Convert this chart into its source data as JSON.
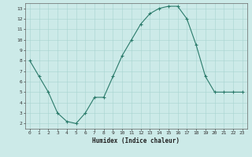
{
  "x": [
    0,
    1,
    2,
    3,
    4,
    5,
    6,
    7,
    8,
    9,
    10,
    11,
    12,
    13,
    14,
    15,
    16,
    17,
    18,
    19,
    20,
    21,
    22,
    23
  ],
  "y": [
    8.0,
    6.5,
    5.0,
    3.0,
    2.2,
    2.0,
    3.0,
    4.5,
    4.5,
    6.5,
    8.5,
    10.0,
    11.5,
    12.5,
    13.0,
    13.2,
    13.2,
    12.0,
    9.5,
    6.5,
    5.0,
    5.0,
    5.0,
    5.0
  ],
  "xlabel": "Humidex (Indice chaleur)",
  "xlim": [
    -0.5,
    23.5
  ],
  "ylim": [
    1.5,
    13.5
  ],
  "yticks": [
    2,
    3,
    4,
    5,
    6,
    7,
    8,
    9,
    10,
    11,
    12,
    13
  ],
  "xticks": [
    0,
    1,
    2,
    3,
    4,
    5,
    6,
    7,
    8,
    9,
    10,
    11,
    12,
    13,
    14,
    15,
    16,
    17,
    18,
    19,
    20,
    21,
    22,
    23
  ],
  "line_color": "#2a7a6a",
  "bg_color": "#cceae8",
  "grid_color": "#a8d4d0",
  "tick_fontsize": 4.5,
  "xlabel_fontsize": 5.5
}
